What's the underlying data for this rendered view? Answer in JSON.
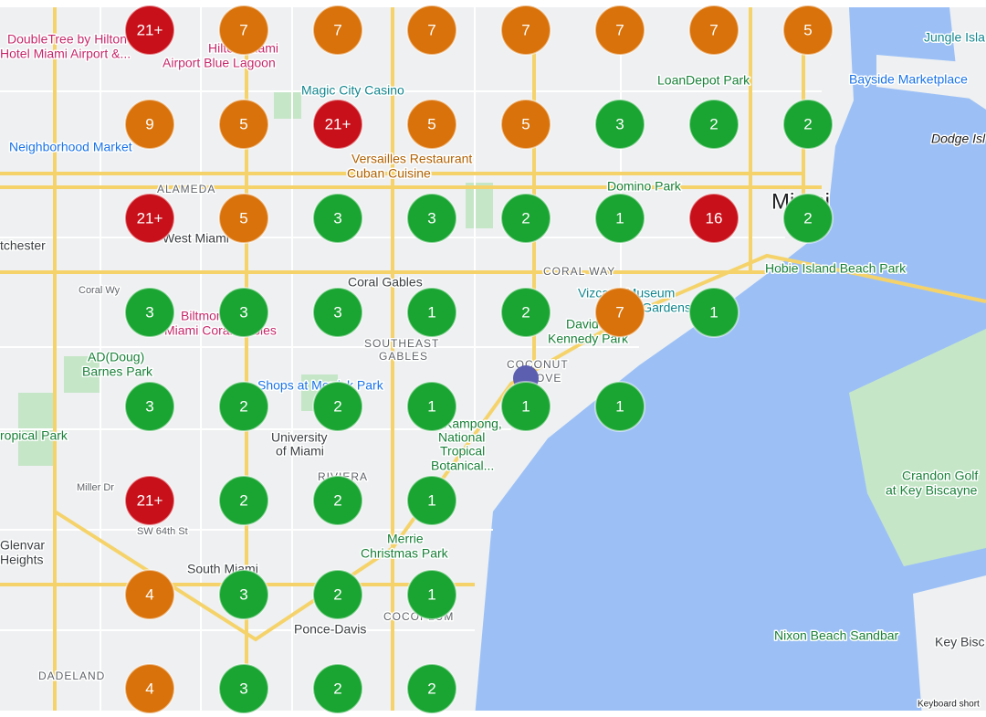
{
  "clusters": [
    [
      {
        "count": "21+",
        "color": "#c8101a"
      },
      {
        "count": 7,
        "color": "#d9720a"
      },
      {
        "count": 7,
        "color": "#d9720a"
      },
      {
        "count": 7,
        "color": "#d9720a"
      },
      {
        "count": 7,
        "color": "#d9720a"
      },
      {
        "count": 7,
        "color": "#d9720a"
      },
      {
        "count": 7,
        "color": "#d9720a"
      },
      {
        "count": 5,
        "color": "#d9720a"
      }
    ],
    [
      {
        "count": 9,
        "color": "#d9720a"
      },
      {
        "count": 5,
        "color": "#d9720a"
      },
      {
        "count": "21+",
        "color": "#c8101a"
      },
      {
        "count": 5,
        "color": "#d9720a"
      },
      {
        "count": 5,
        "color": "#d9720a"
      },
      {
        "count": 3,
        "color": "#1aa533"
      },
      {
        "count": 2,
        "color": "#1aa533"
      },
      {
        "count": 2,
        "color": "#1aa533"
      }
    ],
    [
      {
        "count": "21+",
        "color": "#c8101a"
      },
      {
        "count": 5,
        "color": "#d9720a"
      },
      {
        "count": 3,
        "color": "#1aa533"
      },
      {
        "count": 3,
        "color": "#1aa533"
      },
      {
        "count": 2,
        "color": "#1aa533"
      },
      {
        "count": 1,
        "color": "#1aa533"
      },
      {
        "count": 16,
        "color": "#c8101a"
      },
      {
        "count": 2,
        "color": "#1aa533"
      }
    ],
    [
      {
        "count": 3,
        "color": "#1aa533"
      },
      {
        "count": 3,
        "color": "#1aa533"
      },
      {
        "count": 3,
        "color": "#1aa533"
      },
      {
        "count": 1,
        "color": "#1aa533"
      },
      {
        "count": 2,
        "color": "#1aa533"
      },
      {
        "count": 7,
        "color": "#d9720a"
      },
      {
        "count": 1,
        "color": "#1aa533"
      },
      null
    ],
    [
      {
        "count": 3,
        "color": "#1aa533"
      },
      {
        "count": 2,
        "color": "#1aa533"
      },
      {
        "count": 2,
        "color": "#1aa533"
      },
      {
        "count": 1,
        "color": "#1aa533"
      },
      {
        "count": 1,
        "color": "#1aa533"
      },
      {
        "count": 1,
        "color": "#1aa533"
      },
      null,
      null
    ],
    [
      {
        "count": "21+",
        "color": "#c8101a"
      },
      {
        "count": 2,
        "color": "#1aa533"
      },
      {
        "count": 2,
        "color": "#1aa533"
      },
      {
        "count": 1,
        "color": "#1aa533"
      },
      null,
      null,
      null,
      null
    ],
    [
      {
        "count": 4,
        "color": "#d9720a"
      },
      {
        "count": 3,
        "color": "#1aa533"
      },
      {
        "count": 2,
        "color": "#1aa533"
      },
      {
        "count": 1,
        "color": "#1aa533"
      },
      null,
      null,
      null,
      null
    ],
    [
      {
        "count": 4,
        "color": "#d9720a"
      },
      {
        "count": 3,
        "color": "#1aa533"
      },
      {
        "count": 2,
        "color": "#1aa533"
      },
      {
        "count": 2,
        "color": "#1aa533"
      },
      null,
      null,
      null,
      null
    ]
  ],
  "places": [
    "DoubleTree by Hilton",
    "Hotel Miami Airport &...",
    "Hilton Miami",
    "Airport Blue Lagoon",
    "Magic City Casino",
    "LoanDepot Park",
    "Bayside Marketplace",
    "Jungle Isla",
    "Neighborhood Market",
    "Versailles Restaurant",
    "Cuban Cuisine",
    "Domino Park",
    "Miami",
    "Dodge Isl",
    "ALAMEDA",
    "West Miami",
    "tchester",
    "Coral Gables",
    "CORAL WAY",
    "Hobie Island Beach Park",
    "Vizcaya Museum",
    "& Gardens",
    "Biltmore Hotel",
    "Miami Coral Gables",
    "SOUTHEAST",
    "GABLES",
    "David",
    "Kennedy Park",
    "COCONUT",
    "GROVE",
    "AD(Doug)",
    "Barnes Park",
    "Shops at Merrick Park",
    "University",
    "of Miami",
    "Kampong,",
    "National",
    "Tropical",
    "Botanical...",
    "ropical Park",
    "RIVIERA",
    "Crandon Golf",
    "at Key Biscayne",
    "Miller Dr",
    "SW 64th St",
    "Merrie",
    "Christmas Park",
    "Glenvar",
    "Heights",
    "South Miami",
    "Ponce-Davis",
    "COCOPLUM",
    "Nixon Beach Sandbar",
    "Key Bisc",
    "DADELAND",
    "Coral Wy",
    "Keyboard short"
  ]
}
